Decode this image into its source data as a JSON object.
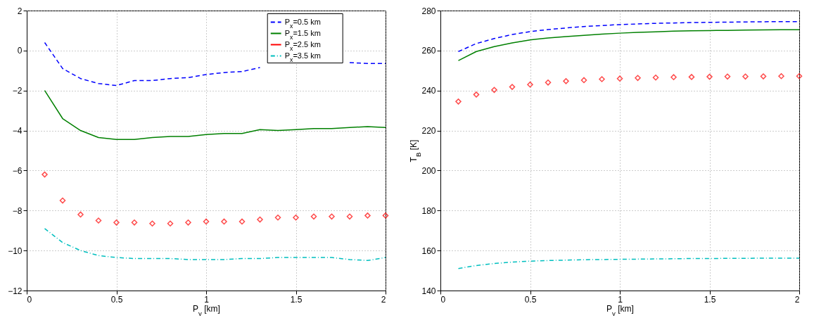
{
  "chart_data": [
    {
      "type": "line",
      "xlabel": "P$_{y}$ [km]",
      "x": [
        0.1,
        0.2,
        0.3,
        0.4,
        0.5,
        0.6,
        0.7,
        0.8,
        0.9,
        1.0,
        1.1,
        1.2,
        1.3,
        1.4,
        1.5,
        1.6,
        1.7,
        1.8,
        1.9,
        2.0
      ],
      "xlim": [
        0,
        2
      ],
      "xticks": [
        0,
        0.5,
        1,
        1.5,
        2
      ],
      "ylim": [
        -12,
        2
      ],
      "yticks": [
        -12,
        -10,
        -8,
        -6,
        -4,
        -2,
        0,
        2
      ],
      "grid": true,
      "legend": "top right",
      "series": [
        {
          "name": "P$_{x}$=0.5 km",
          "color": "#0000ff",
          "line_style": "dashed",
          "values": [
            0.4,
            -0.9,
            -1.4,
            -1.65,
            -1.75,
            -1.5,
            -1.5,
            -1.4,
            -1.35,
            -1.2,
            -1.1,
            -1.05,
            -0.85,
            null,
            null,
            null,
            null,
            -0.6,
            -0.65,
            -0.65
          ]
        },
        {
          "name": "P$_{x}$=1.5 km",
          "color": "#008000",
          "line_style": "solid",
          "values": [
            -2,
            -3.4,
            -4,
            -4.35,
            -4.45,
            -4.45,
            -4.35,
            -4.3,
            -4.3,
            -4.2,
            -4.15,
            -4.15,
            -3.95,
            -4.0,
            -3.95,
            -3.9,
            -3.9,
            -3.85,
            -3.8,
            -3.85
          ]
        },
        {
          "name": "P$_{x}$=2.5 km",
          "color": "#ff0000",
          "type": "scatter",
          "marker": "diamond",
          "values": [
            -6.2,
            -7.5,
            -8.2,
            -8.5,
            -8.6,
            -8.6,
            -8.65,
            -8.65,
            -8.6,
            -8.55,
            -8.55,
            -8.55,
            -8.45,
            -8.35,
            -8.35,
            -8.3,
            -8.3,
            -8.3,
            -8.25,
            -8.25
          ]
        },
        {
          "name": "P$_{x}$=3.5 km",
          "color": "#00bfbf",
          "line_style": "dashdot",
          "values": [
            -8.9,
            -9.6,
            -10,
            -10.25,
            -10.35,
            -10.4,
            -10.4,
            -10.4,
            -10.45,
            -10.45,
            -10.45,
            -10.4,
            -10.4,
            -10.35,
            -10.35,
            -10.35,
            -10.35,
            -10.45,
            -10.5,
            -10.35
          ]
        }
      ]
    },
    {
      "type": "line",
      "xlabel": "P$_{y}$ [km]",
      "ylabel": "T$_{B}$ [K]",
      "x": [
        0.1,
        0.2,
        0.3,
        0.4,
        0.5,
        0.6,
        0.7,
        0.8,
        0.9,
        1.0,
        1.1,
        1.2,
        1.3,
        1.4,
        1.5,
        1.6,
        1.7,
        1.8,
        1.9,
        2.0
      ],
      "xlim": [
        0,
        2
      ],
      "xticks": [
        0,
        0.5,
        1,
        1.5,
        2
      ],
      "ylim": [
        140,
        280
      ],
      "yticks": [
        140,
        160,
        180,
        200,
        220,
        240,
        260,
        280
      ],
      "grid": true,
      "legend": "right",
      "series": [
        {
          "name": "P$_{x}$=0.5 km",
          "color": "#0000ff",
          "line_style": "dashed",
          "values": [
            259.5,
            263.5,
            266,
            268,
            269.5,
            270.5,
            271.3,
            272,
            272.5,
            273,
            273.3,
            273.6,
            273.8,
            274,
            274.1,
            274.2,
            274.3,
            274.4,
            274.5,
            274.5
          ]
        },
        {
          "name": "P$_{x}$=1.5 km",
          "color": "#008000",
          "line_style": "solid",
          "values": [
            255,
            259.5,
            262,
            263.8,
            265.3,
            266.3,
            267,
            267.6,
            268.2,
            268.7,
            269.1,
            269.4,
            269.7,
            269.9,
            270,
            270.1,
            270.2,
            270.3,
            270.4,
            270.4
          ]
        },
        {
          "name": "P$_{x}$=2.5 km",
          "color": "#ff0000",
          "type": "scatter",
          "marker": "diamond",
          "values": [
            234.5,
            238,
            240.3,
            241.8,
            243,
            244,
            244.7,
            245.2,
            245.7,
            246,
            246.3,
            246.5,
            246.7,
            246.8,
            246.9,
            247,
            247,
            247.1,
            247.2,
            247.2
          ]
        },
        {
          "name": "P$_{x}$=3.5 km",
          "color": "#00bfbf",
          "line_style": "dashdot",
          "values": [
            151,
            152.5,
            153.5,
            154.2,
            154.7,
            155,
            155.2,
            155.4,
            155.5,
            155.6,
            155.7,
            155.8,
            155.9,
            156,
            156,
            156.1,
            156.1,
            156.2,
            156.2,
            156.2
          ]
        }
      ]
    }
  ]
}
